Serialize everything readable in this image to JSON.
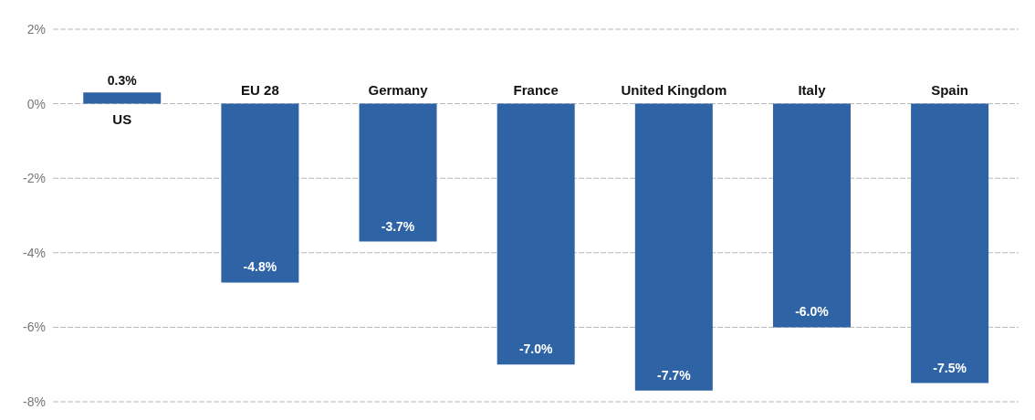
{
  "chart_data": {
    "type": "bar",
    "categories": [
      "US",
      "EU 28",
      "Germany",
      "France",
      "United Kingdom",
      "Italy",
      "Spain"
    ],
    "values": [
      0.3,
      -4.8,
      -3.7,
      -7.0,
      -7.7,
      -6.0,
      -7.5
    ],
    "value_labels": [
      "0.3%",
      "-4.8%",
      "-3.7%",
      "-7.0%",
      "-7.7%",
      "-6.0%",
      "-7.5%"
    ],
    "color": "#2e63a5",
    "ylim": [
      -8,
      2
    ],
    "yticks": [
      {
        "value": 2,
        "label": "2%"
      },
      {
        "value": 0,
        "label": "0%"
      },
      {
        "value": -2,
        "label": "-2%"
      },
      {
        "value": -4,
        "label": "-4%"
      },
      {
        "value": -6,
        "label": "-6%"
      },
      {
        "value": -8,
        "label": "-8%"
      }
    ],
    "grid": "y"
  }
}
